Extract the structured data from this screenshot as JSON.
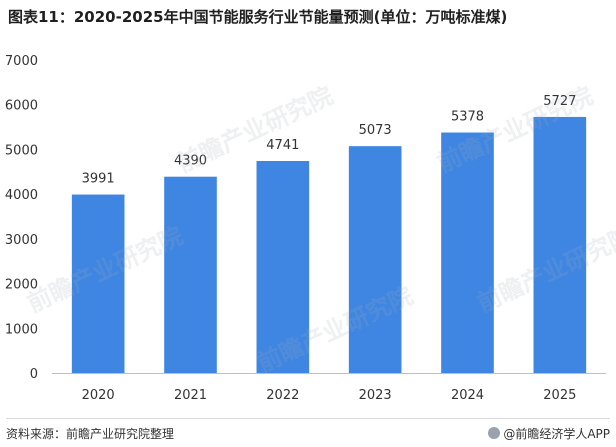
{
  "title": "图表11：2020-2025年中国节能服务行业节能量预测(单位：万吨标准煤)",
  "footer": {
    "source": "资料来源：前瞻产业研究院整理",
    "app": "@前瞻经济学人APP"
  },
  "watermark": "前瞻产业研究院",
  "colors": {
    "bar": "#3f86e3",
    "axis": "#bfbfbf",
    "text": "#333333"
  },
  "chart_data": {
    "type": "bar",
    "title": "图表11：2020-2025年中国节能服务行业节能量预测(单位：万吨标准煤)",
    "categories": [
      "2020",
      "2021",
      "2022",
      "2023",
      "2024",
      "2025"
    ],
    "values": [
      3991,
      4390,
      4741,
      5073,
      5378,
      5727
    ],
    "yticks": [
      0,
      1000,
      2000,
      3000,
      4000,
      5000,
      6000,
      7000
    ],
    "ylim": [
      0,
      7000
    ],
    "xlabel": "",
    "ylabel": "",
    "grid": false,
    "data_labels": true
  }
}
